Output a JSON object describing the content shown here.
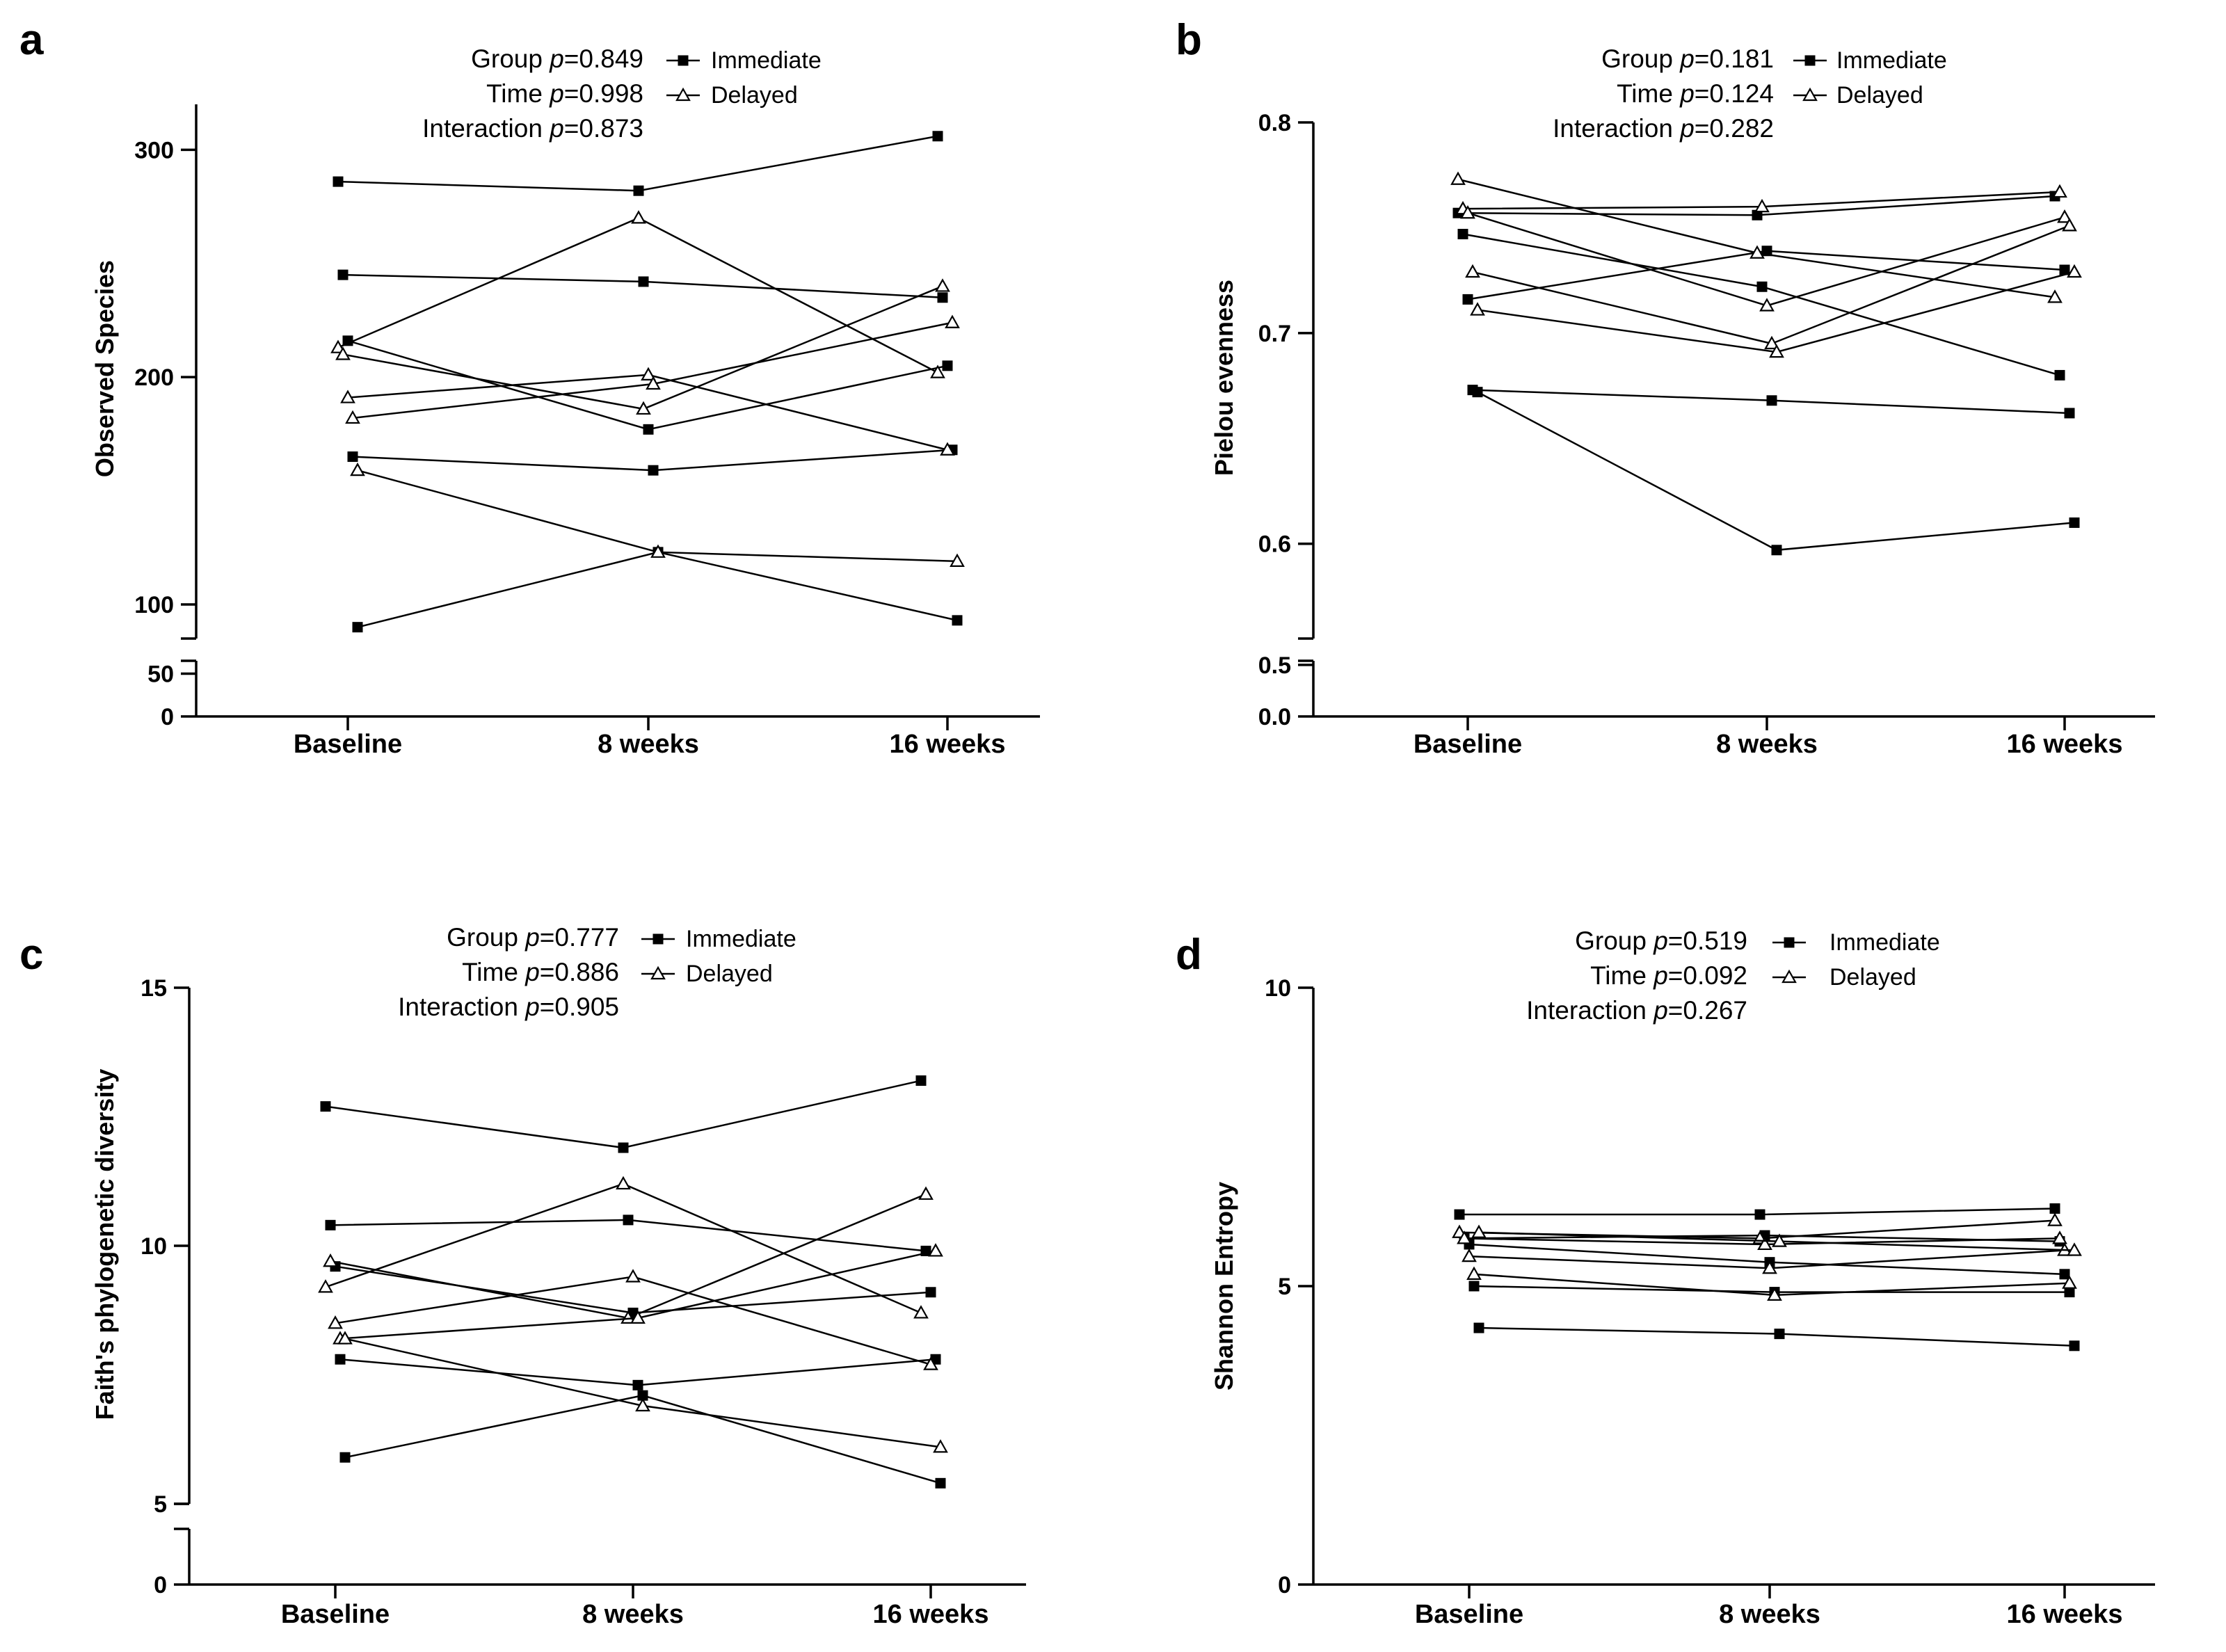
{
  "figure": {
    "legend_labels": {
      "immediate": "Immediate",
      "delayed": "Delayed"
    },
    "colors": {
      "ink": "#000000",
      "background": "#ffffff"
    }
  },
  "chart_data": [
    {
      "panel": "a",
      "type": "line",
      "ylabel": "Observed Species",
      "xlabel": "",
      "categories": [
        "Baseline",
        "8 weeks",
        "16 weeks"
      ],
      "ylim_upper": [
        85,
        320
      ],
      "ylim_lower": [
        0,
        65
      ],
      "yticks_upper": [
        100,
        200,
        300
      ],
      "yticks_lower": [
        0,
        50
      ],
      "stats": [
        {
          "label": "Group ",
          "p": "=0.849"
        },
        {
          "label": "Time ",
          "p": "=0.998"
        },
        {
          "label": "Interaction ",
          "p": "=0.873"
        }
      ],
      "series": [
        {
          "group": "Immediate",
          "values": [
            286,
            282,
            306
          ]
        },
        {
          "group": "Immediate",
          "values": [
            245,
            242,
            235
          ]
        },
        {
          "group": "Immediate",
          "values": [
            216,
            177,
            205
          ]
        },
        {
          "group": "Immediate",
          "values": [
            165,
            159,
            168
          ]
        },
        {
          "group": "Immediate",
          "values": [
            90,
            123,
            93
          ]
        },
        {
          "group": "Delayed",
          "values": [
            213,
            270,
            202
          ]
        },
        {
          "group": "Delayed",
          "values": [
            210,
            186,
            240
          ]
        },
        {
          "group": "Delayed",
          "values": [
            191,
            201,
            168
          ]
        },
        {
          "group": "Delayed",
          "values": [
            182,
            197,
            224
          ]
        },
        {
          "group": "Delayed",
          "values": [
            159,
            123,
            119
          ]
        }
      ]
    },
    {
      "panel": "b",
      "type": "line",
      "ylabel": "Pielou evenness",
      "xlabel": "",
      "categories": [
        "Baseline",
        "8 weeks",
        "16 weeks"
      ],
      "ylim_upper": [
        0.555,
        0.8
      ],
      "ylim_lower": [
        0,
        0.54
      ],
      "yticks_upper": [
        0.6,
        0.7,
        0.8
      ],
      "yticks_lower": [
        0.0,
        0.5
      ],
      "tick_decimals": 1,
      "stats": [
        {
          "label": "Group ",
          "p": "=0.181"
        },
        {
          "label": "Time ",
          "p": "=0.124"
        },
        {
          "label": "Interaction ",
          "p": "=0.282"
        }
      ],
      "series": [
        {
          "group": "Immediate",
          "values": [
            0.757,
            0.756,
            0.765
          ]
        },
        {
          "group": "Immediate",
          "values": [
            0.747,
            0.722,
            0.68
          ]
        },
        {
          "group": "Immediate",
          "values": [
            0.716,
            0.739,
            0.73
          ]
        },
        {
          "group": "Immediate",
          "values": [
            0.673,
            0.668,
            0.662
          ]
        },
        {
          "group": "Immediate",
          "values": [
            0.672,
            0.597,
            0.61
          ]
        },
        {
          "group": "Delayed",
          "values": [
            0.773,
            0.738,
            0.717
          ]
        },
        {
          "group": "Delayed",
          "values": [
            0.759,
            0.76,
            0.767
          ]
        },
        {
          "group": "Delayed",
          "values": [
            0.757,
            0.713,
            0.755
          ]
        },
        {
          "group": "Delayed",
          "values": [
            0.729,
            0.695,
            0.751
          ]
        },
        {
          "group": "Delayed",
          "values": [
            0.711,
            0.691,
            0.729
          ]
        }
      ]
    },
    {
      "panel": "c",
      "type": "line",
      "ylabel": "Faith's phylogenetic diversity",
      "xlabel": "",
      "categories": [
        "Baseline",
        "8 weeks",
        "16 weeks"
      ],
      "ylim_upper": [
        5,
        15
      ],
      "ylim_lower": [
        0,
        1.1
      ],
      "yticks_upper": [
        5,
        10,
        15
      ],
      "yticks_lower": [
        0
      ],
      "stats": [
        {
          "label": "Group ",
          "p": "=0.777"
        },
        {
          "label": "Time ",
          "p": "=0.886"
        },
        {
          "label": "Interaction ",
          "p": "=0.905"
        }
      ],
      "series": [
        {
          "group": "Immediate",
          "values": [
            12.7,
            11.9,
            13.2
          ]
        },
        {
          "group": "Immediate",
          "values": [
            10.4,
            10.5,
            9.9
          ]
        },
        {
          "group": "Immediate",
          "values": [
            9.6,
            8.7,
            9.1
          ]
        },
        {
          "group": "Immediate",
          "values": [
            7.8,
            7.3,
            7.8
          ]
        },
        {
          "group": "Immediate",
          "values": [
            5.9,
            7.1,
            5.4
          ]
        },
        {
          "group": "Delayed",
          "values": [
            9.2,
            11.2,
            8.7
          ]
        },
        {
          "group": "Delayed",
          "values": [
            9.7,
            8.6,
            11.0
          ]
        },
        {
          "group": "Delayed",
          "values": [
            8.5,
            9.4,
            7.7
          ]
        },
        {
          "group": "Delayed",
          "values": [
            8.2,
            8.6,
            9.9
          ]
        },
        {
          "group": "Delayed",
          "values": [
            8.2,
            6.9,
            6.1
          ]
        }
      ]
    },
    {
      "panel": "d",
      "type": "line",
      "ylabel": "Shannon Entropy",
      "xlabel": "",
      "categories": [
        "Baseline",
        "8 weeks",
        "16 weeks"
      ],
      "ylim": [
        0,
        10
      ],
      "yticks": [
        0,
        5,
        10
      ],
      "stats": [
        {
          "label": "Group ",
          "p": "=0.519"
        },
        {
          "label": "Time ",
          "p": "=0.092"
        },
        {
          "label": "Interaction ",
          "p": "=0.267"
        }
      ],
      "series": [
        {
          "group": "Immediate",
          "values": [
            6.2,
            6.2,
            6.3
          ]
        },
        {
          "group": "Immediate",
          "values": [
            5.8,
            5.85,
            5.75
          ]
        },
        {
          "group": "Immediate",
          "values": [
            5.7,
            5.4,
            5.2
          ]
        },
        {
          "group": "Immediate",
          "values": [
            5.0,
            4.9,
            4.9
          ]
        },
        {
          "group": "Immediate",
          "values": [
            4.3,
            4.2,
            4.0
          ]
        },
        {
          "group": "Delayed",
          "values": [
            5.9,
            5.8,
            6.1
          ]
        },
        {
          "group": "Delayed",
          "values": [
            5.8,
            5.7,
            5.8
          ]
        },
        {
          "group": "Delayed",
          "values": [
            5.5,
            5.3,
            5.6
          ]
        },
        {
          "group": "Delayed",
          "values": [
            5.2,
            4.85,
            5.05
          ]
        },
        {
          "group": "Delayed",
          "values": [
            5.9,
            5.75,
            5.6
          ]
        }
      ]
    }
  ]
}
